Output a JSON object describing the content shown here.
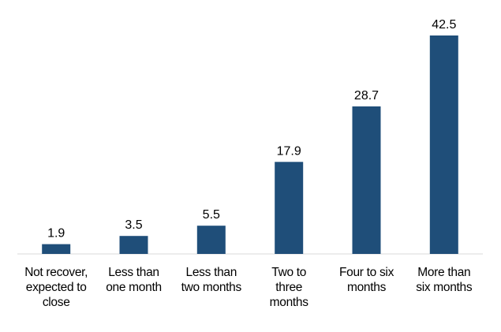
{
  "colors": {
    "bar": "#1F4E79",
    "axis": "#d9d9d9",
    "text": "#000000",
    "background": "#ffffff"
  },
  "chart_data": {
    "type": "bar",
    "categories": [
      "Not recover, expected to close",
      "Less than one month",
      "Less than two months",
      "Two to three months",
      "Four to six months",
      "More than six months"
    ],
    "category_lines": [
      [
        "Not recover,",
        "expected to",
        "close"
      ],
      [
        "Less than",
        "one month"
      ],
      [
        "Less than",
        "two months"
      ],
      [
        "Two to",
        "three",
        "months"
      ],
      [
        "Four to six",
        "months"
      ],
      [
        "More than",
        "six months"
      ]
    ],
    "values": [
      1.9,
      3.5,
      5.5,
      17.9,
      28.7,
      42.5
    ],
    "value_labels": [
      "1.9",
      "3.5",
      "5.5",
      "17.9",
      "28.7",
      "42.5"
    ],
    "ylim": [
      0,
      42.5
    ],
    "title": "",
    "xlabel": "",
    "ylabel": "",
    "grid": false,
    "legend": "none"
  }
}
